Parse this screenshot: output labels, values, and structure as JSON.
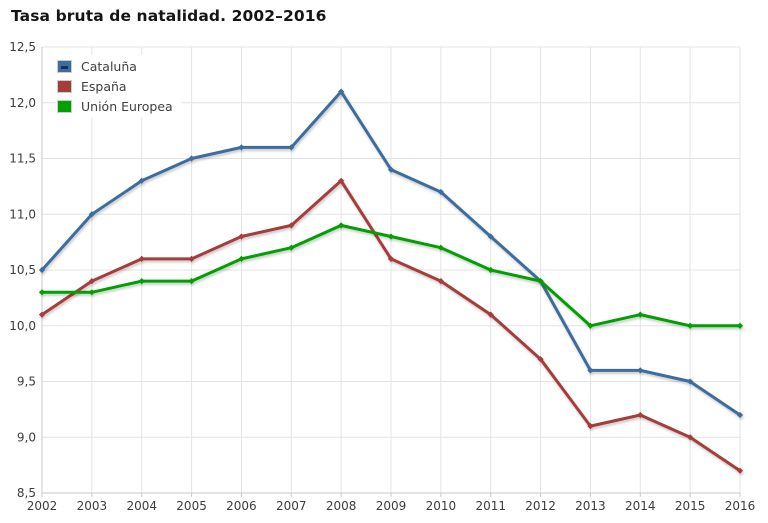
{
  "title": "Tasa bruta de natalidad. 2002–2016",
  "legend": {
    "position": "top-left",
    "items": [
      {
        "id": "cataluna",
        "label": "Cataluña",
        "color": "#3d6c9e",
        "dash_color": "#16334f"
      },
      {
        "id": "espana",
        "label": "España",
        "color": "#a43c3a",
        "dash_color": ""
      },
      {
        "id": "union-europea",
        "label": "Unión Europea",
        "color": "#00a000",
        "dash_color": ""
      }
    ]
  },
  "colors": {
    "grid": "#e4e4e4",
    "axis": "#c8c8c8",
    "tick_text": "#3d3d3d",
    "title_text": "#151515",
    "background": "#ffffff"
  },
  "axes": {
    "x_tick_labels": [
      "2002",
      "2003",
      "2004",
      "2005",
      "2006",
      "2007",
      "2008",
      "2009",
      "2010",
      "2011",
      "2012",
      "2013",
      "2014",
      "2015",
      "2016"
    ],
    "y_tick_labels": [
      "12,5",
      "12,0",
      "11,5",
      "11,0",
      "10,5",
      "10,0",
      "9,5",
      "9,0",
      "8,5"
    ],
    "y_tick_values": [
      12.5,
      12.0,
      11.5,
      11.0,
      10.5,
      10.0,
      9.5,
      9.0,
      8.5
    ]
  },
  "chart_data": {
    "type": "line",
    "title": "Tasa bruta de natalidad. 2002–2016",
    "xlabel": "",
    "ylabel": "",
    "x": [
      2002,
      2003,
      2004,
      2005,
      2006,
      2007,
      2008,
      2009,
      2010,
      2011,
      2012,
      2013,
      2014,
      2015,
      2016
    ],
    "series": [
      {
        "name": "Cataluña",
        "id": "cataluna",
        "color": "#3d6c9e",
        "values": [
          10.5,
          11.0,
          11.3,
          11.5,
          11.6,
          11.6,
          12.1,
          11.4,
          11.2,
          10.8,
          10.4,
          9.6,
          9.6,
          9.5,
          9.2
        ]
      },
      {
        "name": "España",
        "id": "espana",
        "color": "#a43c3a",
        "values": [
          10.1,
          10.4,
          10.6,
          10.6,
          10.8,
          10.9,
          11.3,
          10.6,
          10.4,
          10.1,
          9.7,
          9.1,
          9.2,
          9.0,
          8.7
        ]
      },
      {
        "name": "Unión Europea",
        "id": "union-europea",
        "color": "#00a000",
        "values": [
          10.3,
          10.3,
          10.4,
          10.4,
          10.6,
          10.7,
          10.9,
          10.8,
          10.7,
          10.5,
          10.4,
          10.0,
          10.1,
          10.0,
          10.0
        ]
      }
    ],
    "ylim": [
      8.5,
      12.5
    ],
    "y_step": 0.5,
    "grid": true,
    "decimal_separator": ",",
    "legend_position": "top-left"
  }
}
